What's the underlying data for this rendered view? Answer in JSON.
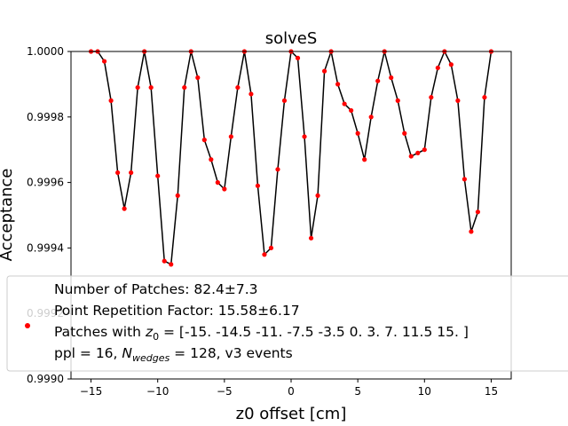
{
  "chart_data": {
    "type": "line",
    "title": "solveS",
    "xlabel": "z0 offset [cm]",
    "ylabel": "Acceptance",
    "xlim": [
      -16.5,
      16.5
    ],
    "ylim": [
      0.999,
      1.0
    ],
    "xticks": [
      -15,
      -10,
      -5,
      0,
      5,
      10,
      15
    ],
    "xtick_labels": [
      "−15",
      "−10",
      "−5",
      "0",
      "5",
      "10",
      "15"
    ],
    "yticks": [
      0.999,
      0.9992,
      0.9994,
      0.9996,
      0.9998,
      1.0
    ],
    "ytick_labels": [
      "0.9990",
      "0.9992",
      "0.9994",
      "0.9996",
      "0.9998",
      "1.0000"
    ],
    "grid": false,
    "legend_position": "lower center",
    "series": [
      {
        "line_color": "#000000",
        "marker_color": "#ff0000",
        "x": [
          -15,
          -14.5,
          -14,
          -13.5,
          -13,
          -12.5,
          -12,
          -11.5,
          -11,
          -10.5,
          -10,
          -9.5,
          -9,
          -8.5,
          -8,
          -7.5,
          -7,
          -6.5,
          -6,
          -5.5,
          -5,
          -4.5,
          -4,
          -3.5,
          -3,
          -2.5,
          -2,
          -1.5,
          -1,
          -0.5,
          0,
          0.5,
          1,
          1.5,
          2,
          2.5,
          3,
          3.5,
          4,
          4.5,
          5,
          5.5,
          6,
          6.5,
          7,
          7.5,
          8,
          8.5,
          9,
          9.5,
          10,
          10.5,
          11,
          11.5,
          12,
          12.5,
          13,
          13.5,
          14,
          14.5,
          15
        ],
        "y": [
          1.0,
          1.0,
          0.99997,
          0.99985,
          0.99963,
          0.99952,
          0.99963,
          0.99989,
          1.0,
          0.99989,
          0.99962,
          0.99936,
          0.99935,
          0.99956,
          0.99989,
          1.0,
          0.99992,
          0.99973,
          0.99967,
          0.9996,
          0.99958,
          0.99974,
          0.99989,
          1.0,
          0.99987,
          0.99959,
          0.99938,
          0.9994,
          0.99964,
          0.99985,
          1.0,
          0.99998,
          0.99974,
          0.99943,
          0.99956,
          0.99994,
          1.0,
          0.9999,
          0.99984,
          0.99982,
          0.99975,
          0.99967,
          0.9998,
          0.99991,
          1.0,
          0.99992,
          0.99985,
          0.99975,
          0.99968,
          0.99969,
          0.9997,
          0.99986,
          0.99995,
          1.0,
          0.99996,
          0.99985,
          0.99961,
          0.99945,
          0.99951,
          0.99986,
          1.0
        ]
      }
    ],
    "legend": {
      "lines": [
        "Number of Patches: 82.4±7.3",
        "Point Repetition Factor: 15.58±6.17",
        "Patches with z0 = [-15.  -14.5 -11.    -7.5  -3.5   0.     3.     7.    11.5  15. ]",
        "ppl = 16, Nwedges = 128, v3 events"
      ]
    }
  }
}
